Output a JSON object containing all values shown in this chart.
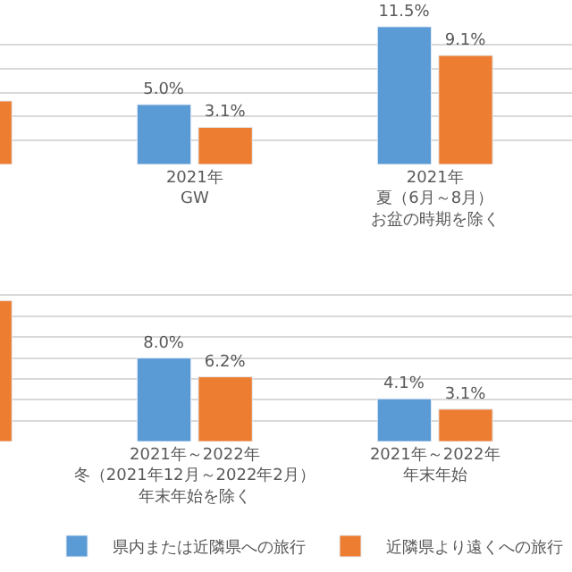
{
  "chart_data": [
    {
      "type": "bar",
      "categories": [
        null,
        "2021年GW",
        "2021年夏（6月～8月）お盆の時期を除く"
      ],
      "series": [
        {
          "color": "#5b9bd5",
          "values": [
            null,
            5.0,
            11.5
          ],
          "value_labels": [
            null,
            "5.0%",
            "11.5%"
          ]
        },
        {
          "color": "#ed7d31",
          "values": [
            5.3,
            3.1,
            9.1
          ],
          "value_labels": [
            null,
            "3.1%",
            "9.1%"
          ]
        }
      ],
      "grid": "y",
      "tick_labels": "x",
      "legend": false
    },
    {
      "type": "bar",
      "categories": [
        null,
        "2021年～2022年冬（2021年12月～2022年2月）年末年始を除く",
        "2021年～2022年年末年始"
      ],
      "series": [
        {
          "name": "県内または近隣県への旅行",
          "color": "#5b9bd5",
          "values": [
            null,
            8.0,
            4.1
          ],
          "value_labels": [
            null,
            "8.0%",
            "4.1%"
          ]
        },
        {
          "name": "近隣県より遠くへの旅行",
          "color": "#ed7d31",
          "values": [
            13.5,
            6.2,
            3.1
          ],
          "value_labels": [
            null,
            "6.2%",
            "3.1%"
          ]
        }
      ],
      "grid": "y",
      "tick_labels": "x",
      "legend": "bottom"
    }
  ]
}
